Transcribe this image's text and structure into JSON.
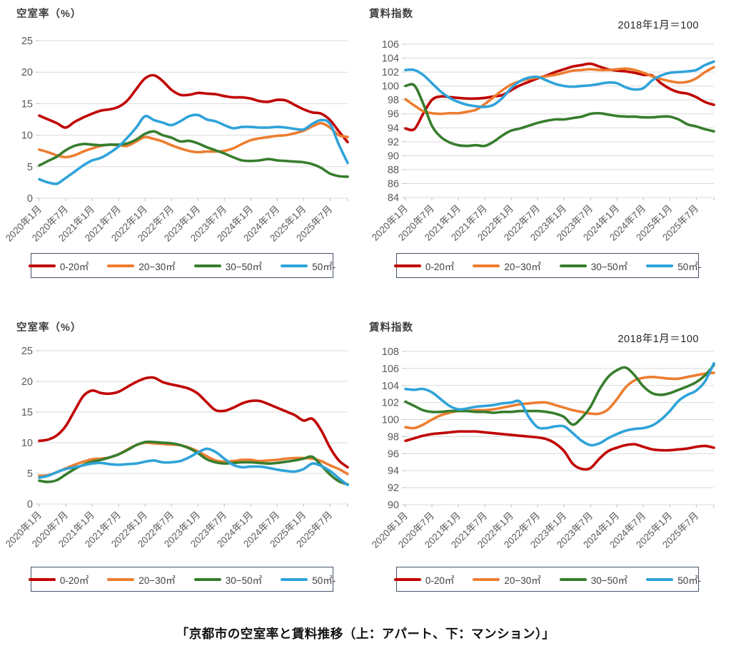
{
  "caption": "「京都市の空室率と賃料推移（上：アパート、下：マンション）」",
  "x_tick_labels": [
    "2020年1月",
    "2020年7月",
    "2021年1月",
    "2021年7月",
    "2022年1月",
    "2022年7月",
    "2023年1月",
    "2023年7月",
    "2024年1月",
    "2024年7月",
    "2025年1月",
    "2025年7月"
  ],
  "colors": {
    "s0": "#C00000",
    "s1": "#ED7D31",
    "s2": "#377D2D",
    "s3": "#2FA3D9"
  },
  "chart_data": [
    {
      "id": "apartment-vacancy",
      "type": "line",
      "title": "空室率（%）",
      "annotation": "",
      "ylim": [
        0,
        25
      ],
      "yticks": [
        0,
        5,
        10,
        15,
        20,
        25
      ],
      "x_interval_months": 2,
      "x_points_per_tick": 3,
      "legend_position": "bottom",
      "grid": true,
      "series": [
        {
          "name": "0-20㎡",
          "color": "#C00000",
          "values": [
            13.1,
            12.5,
            11.9,
            11.2,
            12.1,
            12.8,
            13.4,
            13.9,
            14.1,
            14.5,
            15.5,
            17.3,
            19.0,
            19.5,
            18.6,
            17.2,
            16.4,
            16.4,
            16.7,
            16.6,
            16.5,
            16.2,
            16.0,
            16.0,
            15.8,
            15.4,
            15.3,
            15.6,
            15.5,
            14.8,
            14.1,
            13.6,
            13.4,
            12.4,
            10.6,
            8.9
          ]
        },
        {
          "name": "20−30㎡",
          "color": "#ED7D31",
          "values": [
            7.7,
            7.3,
            6.8,
            6.5,
            6.8,
            7.4,
            7.9,
            8.3,
            8.5,
            8.4,
            8.3,
            9.0,
            9.7,
            9.4,
            9.0,
            8.4,
            7.9,
            7.5,
            7.3,
            7.4,
            7.4,
            7.5,
            7.9,
            8.6,
            9.2,
            9.5,
            9.7,
            9.9,
            10.0,
            10.3,
            10.7,
            11.4,
            11.9,
            11.2,
            10.0,
            9.7
          ]
        },
        {
          "name": "30−50㎡",
          "color": "#377D2D",
          "values": [
            5.2,
            5.9,
            6.6,
            7.6,
            8.3,
            8.6,
            8.5,
            8.4,
            8.5,
            8.5,
            8.7,
            9.3,
            10.2,
            10.6,
            10.0,
            9.6,
            9.0,
            9.1,
            8.7,
            8.1,
            7.6,
            7.1,
            6.5,
            6.0,
            5.9,
            6.0,
            6.2,
            6.0,
            5.9,
            5.8,
            5.7,
            5.4,
            4.8,
            3.9,
            3.5,
            3.4
          ]
        },
        {
          "name": "50㎡-",
          "color": "#2FA3D9",
          "values": [
            3.0,
            2.5,
            2.3,
            3.2,
            4.2,
            5.2,
            6.0,
            6.4,
            7.2,
            8.2,
            9.6,
            11.2,
            13.0,
            12.4,
            12.0,
            11.6,
            12.2,
            13.0,
            13.2,
            12.5,
            12.2,
            11.6,
            11.1,
            11.3,
            11.3,
            11.2,
            11.2,
            11.3,
            11.2,
            11.0,
            10.9,
            11.8,
            12.4,
            11.8,
            8.5,
            5.6
          ]
        }
      ]
    },
    {
      "id": "apartment-rent-index",
      "type": "line",
      "title": "賃料指数",
      "annotation": "2018年1月＝100",
      "ylim": [
        84,
        106
      ],
      "yticks": [
        84,
        86,
        88,
        90,
        92,
        94,
        96,
        98,
        100,
        102,
        104,
        106
      ],
      "x_interval_months": 2,
      "x_points_per_tick": 3,
      "legend_position": "bottom",
      "grid": true,
      "series": [
        {
          "name": "0-20㎡",
          "color": "#C00000",
          "values": [
            93.9,
            93.8,
            96.0,
            98.0,
            98.5,
            98.4,
            98.3,
            98.2,
            98.2,
            98.3,
            98.5,
            98.7,
            99.4,
            100.1,
            100.6,
            101.1,
            101.5,
            102.0,
            102.4,
            102.8,
            103.0,
            103.2,
            102.8,
            102.4,
            102.2,
            102.1,
            101.9,
            101.6,
            101.5,
            100.4,
            99.6,
            99.1,
            98.9,
            98.4,
            97.7,
            97.3
          ]
        },
        {
          "name": "20−30㎡",
          "color": "#ED7D31",
          "values": [
            98.1,
            97.2,
            96.4,
            96.1,
            96.0,
            96.1,
            96.1,
            96.3,
            96.6,
            97.4,
            98.4,
            99.4,
            100.2,
            100.7,
            101.0,
            101.2,
            101.4,
            101.6,
            101.9,
            102.2,
            102.3,
            102.4,
            102.3,
            102.3,
            102.4,
            102.5,
            102.3,
            101.9,
            101.4,
            101.0,
            100.7,
            100.5,
            100.6,
            101.1,
            102.0,
            102.7
          ]
        },
        {
          "name": "30−50㎡",
          "color": "#377D2D",
          "values": [
            100.0,
            100.1,
            97.5,
            94.3,
            92.7,
            91.9,
            91.5,
            91.4,
            91.5,
            91.4,
            92.0,
            92.9,
            93.6,
            93.9,
            94.3,
            94.7,
            95.0,
            95.2,
            95.2,
            95.4,
            95.6,
            96.0,
            96.1,
            95.9,
            95.7,
            95.6,
            95.6,
            95.5,
            95.5,
            95.6,
            95.6,
            95.2,
            94.5,
            94.2,
            93.8,
            93.5
          ]
        },
        {
          "name": "50㎡-",
          "color": "#2FA3D9",
          "values": [
            102.3,
            102.3,
            101.6,
            100.4,
            99.2,
            98.3,
            97.7,
            97.3,
            97.1,
            97.0,
            97.3,
            98.3,
            99.7,
            100.7,
            101.2,
            101.3,
            100.8,
            100.3,
            100.0,
            99.9,
            100.0,
            100.1,
            100.3,
            100.5,
            100.4,
            99.8,
            99.5,
            99.7,
            100.8,
            101.5,
            101.9,
            102.0,
            102.1,
            102.3,
            103.0,
            103.5
          ]
        }
      ]
    },
    {
      "id": "mansion-vacancy",
      "type": "line",
      "title": "空室率（%）",
      "annotation": "",
      "ylim": [
        0,
        25
      ],
      "yticks": [
        0,
        5,
        10,
        15,
        20,
        25
      ],
      "x_interval_months": 2,
      "x_points_per_tick": 3,
      "legend_position": "bottom",
      "grid": true,
      "series": [
        {
          "name": "0-20㎡",
          "color": "#C00000",
          "values": [
            10.3,
            10.5,
            11.2,
            12.7,
            15.2,
            17.6,
            18.5,
            18.1,
            18.0,
            18.3,
            19.1,
            19.9,
            20.5,
            20.6,
            19.9,
            19.5,
            19.2,
            18.8,
            18.0,
            16.6,
            15.3,
            15.2,
            15.7,
            16.4,
            16.8,
            16.8,
            16.3,
            15.7,
            15.1,
            14.5,
            13.6,
            13.9,
            12.0,
            9.2,
            7.1,
            6.0
          ]
        },
        {
          "name": "20−30㎡",
          "color": "#ED7D31",
          "values": [
            4.6,
            4.7,
            5.2,
            5.8,
            6.4,
            6.9,
            7.3,
            7.4,
            7.6,
            8.1,
            8.9,
            9.6,
            10.0,
            9.9,
            9.8,
            9.7,
            9.6,
            9.2,
            8.6,
            7.8,
            7.1,
            6.9,
            7.0,
            7.2,
            7.2,
            7.0,
            7.1,
            7.2,
            7.4,
            7.5,
            7.5,
            7.4,
            7.0,
            6.3,
            5.7,
            4.9
          ]
        },
        {
          "name": "30−50㎡",
          "color": "#377D2D",
          "values": [
            3.8,
            3.6,
            3.9,
            4.8,
            5.7,
            6.4,
            6.9,
            7.2,
            7.6,
            8.1,
            8.8,
            9.6,
            10.1,
            10.1,
            10.0,
            9.9,
            9.6,
            9.1,
            8.3,
            7.3,
            6.8,
            6.6,
            6.7,
            6.8,
            6.8,
            6.7,
            6.6,
            6.7,
            6.9,
            7.1,
            7.4,
            7.7,
            6.3,
            4.8,
            3.7,
            3.2
          ]
        },
        {
          "name": "50㎡-",
          "color": "#2FA3D9",
          "values": [
            4.3,
            4.6,
            5.2,
            5.7,
            6.0,
            6.3,
            6.6,
            6.7,
            6.5,
            6.4,
            6.5,
            6.6,
            6.9,
            7.1,
            6.8,
            6.8,
            7.0,
            7.6,
            8.4,
            9.0,
            8.5,
            7.4,
            6.4,
            6.0,
            6.1,
            6.1,
            5.9,
            5.6,
            5.4,
            5.3,
            5.7,
            6.6,
            6.2,
            5.4,
            4.2,
            3.1
          ]
        }
      ]
    },
    {
      "id": "mansion-rent-index",
      "type": "line",
      "title": "賃料指数",
      "annotation": "2018年1月＝100",
      "ylim": [
        90,
        108
      ],
      "yticks": [
        90,
        92,
        94,
        96,
        98,
        100,
        102,
        104,
        106,
        108
      ],
      "x_interval_months": 2,
      "x_points_per_tick": 3,
      "legend_position": "bottom",
      "grid": true,
      "series": [
        {
          "name": "0-20㎡",
          "color": "#C00000",
          "values": [
            97.5,
            97.8,
            98.1,
            98.3,
            98.4,
            98.5,
            98.6,
            98.6,
            98.6,
            98.5,
            98.4,
            98.3,
            98.2,
            98.1,
            98.0,
            97.9,
            97.7,
            97.2,
            96.3,
            94.8,
            94.2,
            94.3,
            95.4,
            96.3,
            96.7,
            97.0,
            97.1,
            96.8,
            96.5,
            96.4,
            96.4,
            96.5,
            96.6,
            96.8,
            96.9,
            96.7
          ]
        },
        {
          "name": "20−30㎡",
          "color": "#ED7D31",
          "values": [
            99.1,
            99.0,
            99.4,
            100.0,
            100.5,
            100.8,
            101.0,
            101.0,
            101.1,
            101.1,
            101.2,
            101.4,
            101.6,
            101.8,
            101.9,
            102.0,
            102.0,
            101.7,
            101.4,
            101.1,
            100.9,
            100.7,
            100.7,
            101.2,
            102.4,
            103.8,
            104.6,
            104.9,
            105.0,
            104.9,
            104.8,
            104.8,
            105.0,
            105.2,
            105.4,
            105.5
          ]
        },
        {
          "name": "30−50㎡",
          "color": "#377D2D",
          "values": [
            102.1,
            101.6,
            101.1,
            100.9,
            100.9,
            101.0,
            101.0,
            101.0,
            100.9,
            100.9,
            100.8,
            100.9,
            100.9,
            101.0,
            101.0,
            101.0,
            100.9,
            100.7,
            100.3,
            99.4,
            100.2,
            101.5,
            103.5,
            105.0,
            105.8,
            106.1,
            105.2,
            103.9,
            103.1,
            102.9,
            103.1,
            103.5,
            103.9,
            104.4,
            105.2,
            106.4
          ]
        },
        {
          "name": "50㎡-",
          "color": "#2FA3D9",
          "values": [
            103.6,
            103.5,
            103.6,
            103.2,
            102.4,
            101.6,
            101.2,
            101.3,
            101.5,
            101.6,
            101.7,
            101.9,
            102.0,
            102.1,
            100.3,
            99.1,
            99.0,
            99.2,
            99.2,
            98.4,
            97.5,
            97.0,
            97.2,
            97.8,
            98.3,
            98.7,
            98.9,
            99.0,
            99.3,
            100.0,
            101.0,
            102.2,
            102.9,
            103.4,
            104.5,
            106.6
          ]
        }
      ]
    }
  ]
}
